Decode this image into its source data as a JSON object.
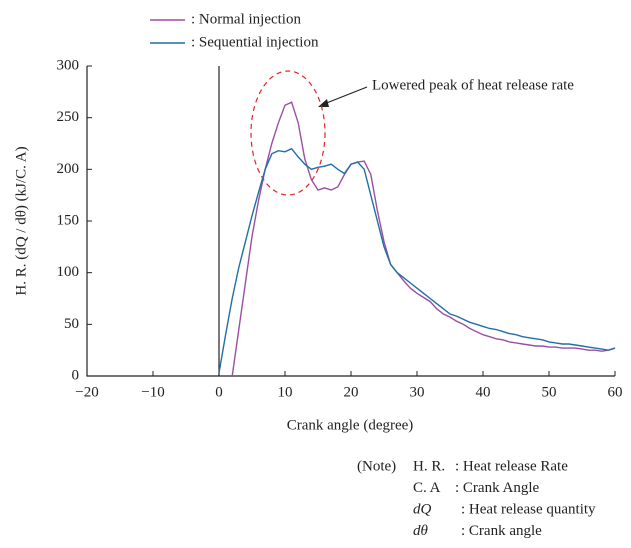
{
  "chart_data": {
    "type": "line",
    "xlabel": "Crank angle  (degree)",
    "ylabel": "H. R.  (dQ / dθ)  (kJ/C. A)",
    "annotation": "Lowered peak of heat release rate",
    "xlim": [
      -20,
      60
    ],
    "xticks": [
      {
        "value": -20,
        "label": "−20"
      },
      {
        "value": -10,
        "label": "−10"
      },
      0,
      10,
      20,
      30,
      40,
      50,
      60
    ],
    "ylim": [
      0,
      300
    ],
    "yticks": [
      0,
      50,
      100,
      150,
      200,
      250,
      300
    ],
    "x": [
      0,
      1,
      2,
      3,
      4,
      5,
      6,
      7,
      8,
      9,
      10,
      11,
      12,
      13,
      14,
      15,
      16,
      17,
      18,
      19,
      20,
      21,
      22,
      23,
      24,
      25,
      26,
      27,
      28,
      29,
      30,
      31,
      32,
      33,
      34,
      35,
      36,
      37,
      38,
      39,
      40,
      41,
      42,
      43,
      44,
      45,
      46,
      47,
      48,
      49,
      50,
      51,
      52,
      53,
      54,
      55,
      56,
      57,
      58,
      59,
      60
    ],
    "series": [
      {
        "name": ": Normal injection",
        "color": "#9b4fa3",
        "values": [
          null,
          null,
          0,
          45,
          90,
          135,
          170,
          200,
          225,
          245,
          262,
          265,
          245,
          210,
          190,
          180,
          182,
          180,
          183,
          195,
          205,
          207,
          208,
          195,
          160,
          130,
          108,
          100,
          92,
          85,
          80,
          76,
          72,
          65,
          60,
          57,
          53,
          50,
          46,
          43,
          40,
          38,
          36,
          35,
          33,
          32,
          31,
          30,
          29,
          29,
          28,
          28,
          27,
          27,
          27,
          26,
          25,
          25,
          24,
          25,
          27
        ]
      },
      {
        "name": ": Sequential injection",
        "color": "#1f6fa8",
        "values": [
          3,
          40,
          75,
          105,
          130,
          155,
          178,
          200,
          215,
          218,
          217,
          220,
          212,
          205,
          200,
          202,
          203,
          205,
          200,
          196,
          205,
          207,
          200,
          175,
          150,
          125,
          108,
          100,
          95,
          90,
          85,
          80,
          75,
          70,
          65,
          60,
          58,
          55,
          52,
          50,
          48,
          46,
          45,
          43,
          41,
          40,
          38,
          37,
          36,
          35,
          33,
          32,
          31,
          31,
          30,
          29,
          28,
          27,
          26,
          25,
          27
        ]
      }
    ],
    "notes_label": "(Note)",
    "notes": [
      {
        "term": "H. R.",
        "definition": ": Heat release Rate"
      },
      {
        "term": "C. A",
        "definition": ": Crank Angle"
      },
      {
        "term": "dQ",
        "definition": ": Heat release quantity"
      },
      {
        "term": "dθ",
        "definition": ": Crank angle"
      }
    ]
  }
}
